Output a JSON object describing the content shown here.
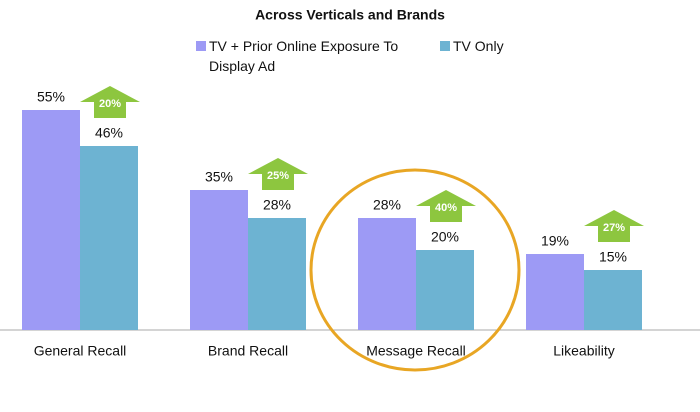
{
  "chart_data": {
    "type": "bar",
    "title": "Across Verticals and Brands",
    "categories": [
      "General Recall",
      "Brand Recall",
      "Message Recall",
      "Likeability"
    ],
    "series": [
      {
        "name": "TV + Prior Online Exposure To Display Ad",
        "color": "#9d9af5",
        "values": [
          55,
          35,
          28,
          19
        ],
        "value_labels": [
          "55%",
          "35%",
          "28%",
          "19%"
        ]
      },
      {
        "name": "TV Only",
        "color": "#6db3d2",
        "values": [
          46,
          28,
          20,
          15
        ],
        "value_labels": [
          "46%",
          "28%",
          "20%",
          "15%"
        ]
      }
    ],
    "annotations": [
      "20%",
      "25%",
      "40%",
      "27%"
    ]
  }
}
